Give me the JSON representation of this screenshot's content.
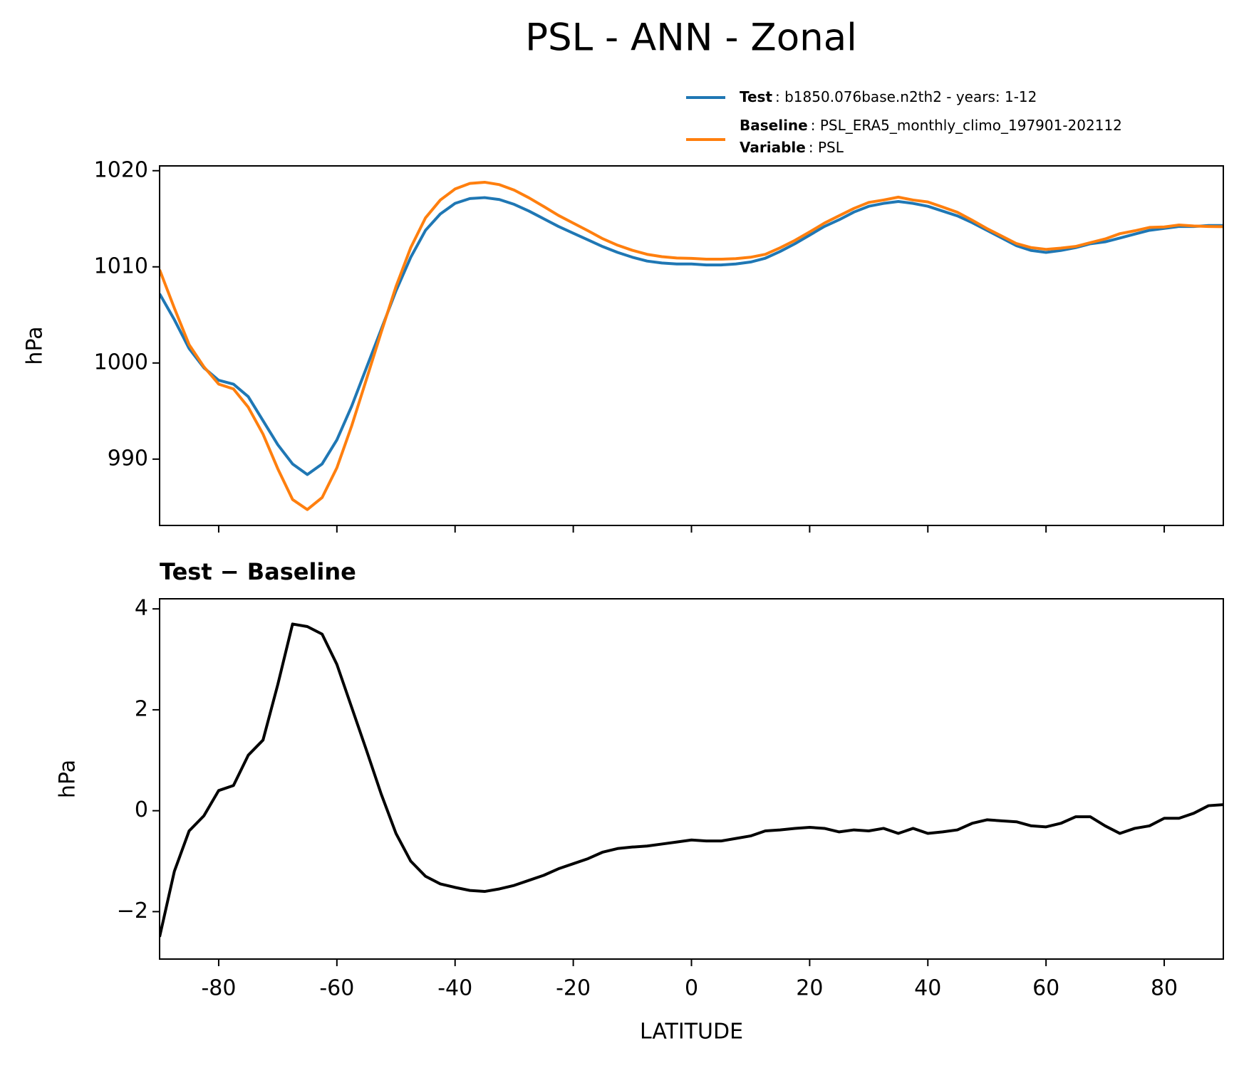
{
  "chart_data": [
    {
      "type": "line",
      "title": "PSL - ANN - Zonal",
      "ylabel": "hPa",
      "x": [
        -90,
        -87.5,
        -85,
        -82.5,
        -80,
        -77.5,
        -75,
        -72.5,
        -70,
        -67.5,
        -65,
        -62.5,
        -60,
        -57.5,
        -55,
        -52.5,
        -50,
        -47.5,
        -45,
        -42.5,
        -40,
        -37.5,
        -35,
        -32.5,
        -30,
        -27.5,
        -25,
        -22.5,
        -20,
        -17.5,
        -15,
        -12.5,
        -10,
        -7.5,
        -5,
        -2.5,
        0,
        2.5,
        5,
        7.5,
        10,
        12.5,
        15,
        17.5,
        20,
        22.5,
        25,
        27.5,
        30,
        32.5,
        35,
        37.5,
        40,
        42.5,
        45,
        47.5,
        50,
        52.5,
        55,
        57.5,
        60,
        62.5,
        65,
        67.5,
        70,
        72.5,
        75,
        77.5,
        80,
        82.5,
        85,
        87.5,
        90
      ],
      "series": [
        {
          "name": "Test",
          "description": ": b1850.076base.n2th2 - years: 1-12",
          "color": "#1f77b4",
          "values": [
            1007.2,
            1004.5,
            1001.5,
            999.5,
            998.2,
            997.8,
            996.5,
            994,
            991.5,
            989.5,
            988.4,
            989.5,
            992,
            995.5,
            999.5,
            1003.5,
            1007.5,
            1011,
            1013.8,
            1015.5,
            1016.6,
            1017.1,
            1017.2,
            1017,
            1016.5,
            1015.8,
            1015,
            1014.2,
            1013.5,
            1012.8,
            1012.1,
            1011.5,
            1011,
            1010.6,
            1010.4,
            1010.3,
            1010.3,
            1010.2,
            1010.2,
            1010.3,
            1010.5,
            1010.9,
            1011.6,
            1012.4,
            1013.3,
            1014.2,
            1014.9,
            1015.7,
            1016.3,
            1016.6,
            1016.8,
            1016.6,
            1016.3,
            1015.8,
            1015.3,
            1014.6,
            1013.8,
            1013,
            1012.2,
            1011.7,
            1011.5,
            1011.7,
            1012,
            1012.4,
            1012.6,
            1013,
            1013.4,
            1013.8,
            1014,
            1014.2,
            1014.2,
            1014.3,
            1014.3
          ]
        },
        {
          "name": "Baseline",
          "description": ": PSL_ERA5_monthly_climo_197901-202112",
          "color": "#ff7f0e",
          "values": [
            1009.7,
            1005.7,
            1001.9,
            999.6,
            997.8,
            997.3,
            995.4,
            992.6,
            989,
            985.8,
            984.75,
            986,
            989.1,
            993.45,
            998.3,
            1003.2,
            1007.95,
            1012,
            1015.1,
            1016.95,
            1018.1,
            1018.68,
            1018.8,
            1018.55,
            1017.98,
            1017.18,
            1016.28,
            1015.35,
            1014.55,
            1013.75,
            1012.92,
            1012.25,
            1011.72,
            1011.3,
            1011.06,
            1010.92,
            1010.88,
            1010.8,
            1010.8,
            1010.85,
            1011,
            1011.3,
            1011.98,
            1012.75,
            1013.63,
            1014.55,
            1015.32,
            1016.08,
            1016.7,
            1016.95,
            1017.25,
            1016.95,
            1016.75,
            1016.22,
            1015.68,
            1014.85,
            1013.98,
            1013.2,
            1012.42,
            1012,
            1011.82,
            1011.95,
            1012.12,
            1012.52,
            1012.9,
            1013.45,
            1013.75,
            1014.1,
            1014.15,
            1014.35,
            1014.25,
            1014.2,
            1014.18
          ]
        }
      ],
      "legend_extra": {
        "name": "Variable",
        "description": ": PSL"
      },
      "xlim": [
        -90,
        90
      ],
      "xticks": [
        -80,
        -60,
        -40,
        -20,
        0,
        20,
        40,
        60,
        80
      ],
      "ylim": [
        983.1,
        1020.5
      ],
      "yticks": [
        990,
        1000,
        1010,
        1020
      ]
    },
    {
      "type": "line",
      "title": "Test − Baseline",
      "ylabel": "hPa",
      "xlabel": "LATITUDE",
      "x": [
        -90,
        -87.5,
        -85,
        -82.5,
        -80,
        -77.5,
        -75,
        -72.5,
        -70,
        -67.5,
        -65,
        -62.5,
        -60,
        -57.5,
        -55,
        -52.5,
        -50,
        -47.5,
        -45,
        -42.5,
        -40,
        -37.5,
        -35,
        -32.5,
        -30,
        -27.5,
        -25,
        -22.5,
        -20,
        -17.5,
        -15,
        -12.5,
        -10,
        -7.5,
        -5,
        -2.5,
        0,
        2.5,
        5,
        7.5,
        10,
        12.5,
        15,
        17.5,
        20,
        22.5,
        25,
        27.5,
        30,
        32.5,
        35,
        37.5,
        40,
        42.5,
        45,
        47.5,
        50,
        52.5,
        55,
        57.5,
        60,
        62.5,
        65,
        67.5,
        70,
        72.5,
        75,
        77.5,
        80,
        82.5,
        85,
        87.5,
        90
      ],
      "series": [
        {
          "color": "#000000",
          "values": [
            -2.5,
            -1.2,
            -0.4,
            -0.1,
            0.4,
            0.5,
            1.1,
            1.4,
            2.5,
            3.7,
            3.65,
            3.5,
            2.9,
            2.05,
            1.2,
            0.33,
            -0.45,
            -1.0,
            -1.3,
            -1.45,
            -1.52,
            -1.58,
            -1.6,
            -1.55,
            -1.48,
            -1.38,
            -1.28,
            -1.15,
            -1.05,
            -0.95,
            -0.82,
            -0.75,
            -0.72,
            -0.7,
            -0.66,
            -0.62,
            -0.58,
            -0.6,
            -0.6,
            -0.55,
            -0.5,
            -0.4,
            -0.38,
            -0.35,
            -0.33,
            -0.35,
            -0.42,
            -0.38,
            -0.4,
            -0.35,
            -0.45,
            -0.35,
            -0.45,
            -0.42,
            -0.38,
            -0.25,
            -0.18,
            -0.2,
            -0.22,
            -0.3,
            -0.32,
            -0.25,
            -0.12,
            -0.12,
            -0.3,
            -0.45,
            -0.35,
            -0.3,
            -0.15,
            -0.15,
            -0.05,
            0.1,
            0.12
          ]
        }
      ],
      "xlim": [
        -90,
        90
      ],
      "xticks": [
        -80,
        -60,
        -40,
        -20,
        0,
        20,
        40,
        60,
        80
      ],
      "ylim": [
        -2.94,
        4.2
      ],
      "yticks": [
        {
          "value": -2,
          "label": "−2"
        },
        0,
        2,
        4
      ]
    }
  ]
}
